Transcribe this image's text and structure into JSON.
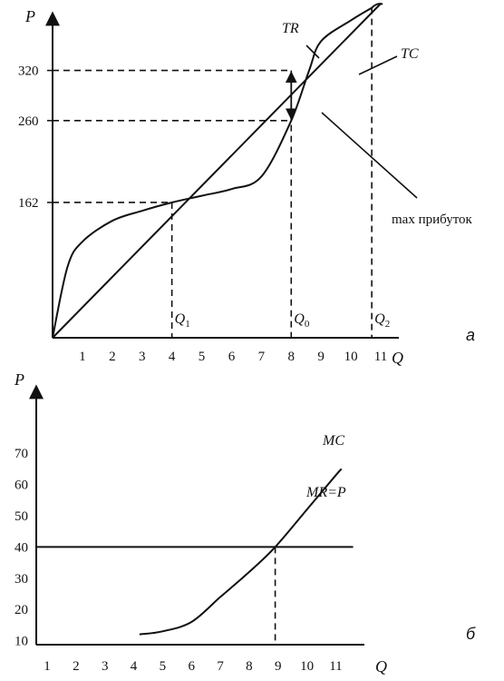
{
  "chart_data": [
    {
      "type": "line",
      "panel_label": "а",
      "ylabel": "P",
      "xlabel": "Q",
      "x_ticks": [
        1,
        2,
        3,
        4,
        5,
        6,
        7,
        8,
        9,
        10,
        11
      ],
      "y_ticks": [
        162,
        260,
        320
      ],
      "xlim": [
        0,
        11
      ],
      "ylim": [
        0,
        400
      ],
      "series": [
        {
          "name": "TR",
          "points": [
            [
              0,
              0
            ],
            [
              11,
              400
            ]
          ]
        },
        {
          "name": "TC",
          "points": [
            [
              0,
              0
            ],
            [
              0.5,
              85
            ],
            [
              1,
              115
            ],
            [
              2,
              140
            ],
            [
              3,
              152
            ],
            [
              4,
              162
            ],
            [
              5,
              170
            ],
            [
              6,
              178
            ],
            [
              7,
              193
            ],
            [
              8,
              260
            ],
            [
              8.6,
              320
            ],
            [
              9,
              355
            ],
            [
              10,
              380
            ],
            [
              10.7,
              395
            ]
          ]
        }
      ],
      "markers": [
        {
          "label": "Q1",
          "x": 4,
          "y": 162
        },
        {
          "label": "Q0",
          "x": 8,
          "y": 320,
          "y2": 260
        },
        {
          "label": "Q2",
          "x": 10.7,
          "y": 395
        }
      ],
      "annotation": "max прибуток",
      "legend": "none",
      "grid": false
    },
    {
      "type": "line",
      "panel_label": "б",
      "ylabel": "P",
      "xlabel": "Q",
      "x_ticks": [
        1,
        2,
        3,
        4,
        5,
        6,
        7,
        8,
        9,
        10,
        11
      ],
      "y_ticks": [
        10,
        20,
        30,
        40,
        50,
        60,
        70
      ],
      "xlim": [
        1,
        11.5
      ],
      "ylim": [
        0,
        75
      ],
      "series": [
        {
          "name": "MC",
          "points": [
            [
              4.2,
              12
            ],
            [
              5,
              13
            ],
            [
              6,
              16
            ],
            [
              7,
              24
            ],
            [
              8,
              32
            ],
            [
              8.9,
              40
            ],
            [
              10,
              52
            ],
            [
              11,
              63
            ],
            [
              11.2,
              65
            ]
          ]
        },
        {
          "name": "MR=P",
          "points": [
            [
              1,
              40
            ],
            [
              11.6,
              40
            ]
          ]
        }
      ],
      "markers": [
        {
          "x": 8.9,
          "y": 40
        }
      ],
      "legend": "none",
      "grid": false
    }
  ]
}
